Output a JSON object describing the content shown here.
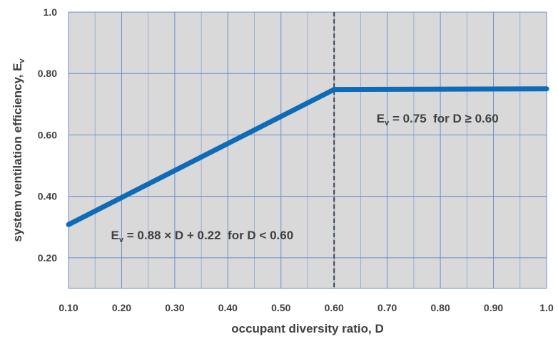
{
  "chart_data": {
    "type": "line",
    "xlabel": "occupant diversity ratio, D",
    "ylabel_main": "system ventilation efficiency, E",
    "ylabel_sub": "v",
    "xlim": [
      0.1,
      1.0
    ],
    "ylim": [
      0.1,
      1.0
    ],
    "x_ticks": [
      0.1,
      0.2,
      0.3,
      0.4,
      0.5,
      0.6,
      0.7,
      0.8,
      0.9,
      1.0
    ],
    "x_tick_labels": [
      "0.10",
      "0.20",
      "0.30",
      "0.40",
      "0.50",
      "0.60",
      "0.70",
      "0.80",
      "0.90",
      "1.0"
    ],
    "y_ticks": [
      0.2,
      0.4,
      0.6,
      0.8,
      1.0
    ],
    "y_tick_labels": [
      "0.20",
      "0.40",
      "0.60",
      "0.80",
      "1.0"
    ],
    "grid": true,
    "series": [
      {
        "x": [
          0.1,
          0.6,
          1.0
        ],
        "y": [
          0.308,
          0.748,
          0.75
        ],
        "color": "#0e6bb8"
      }
    ],
    "vline": {
      "x": 0.6,
      "style": "dashed",
      "color": "#404040"
    },
    "annotations": [
      {
        "prefix": "E",
        "sub": "v",
        "rest": " = 0.88 × D + 0.22  for D < 0.60",
        "at": {
          "x": 0.18,
          "y": 0.26
        }
      },
      {
        "prefix": "E",
        "sub": "v",
        "rest": " = 0.75  for D ≥ 0.60",
        "at": {
          "x": 0.68,
          "y": 0.64
        }
      }
    ]
  },
  "colors": {
    "plot_bg": "#d9d9d9",
    "grid": "#6a8fd0",
    "line": "#0e6bb8",
    "text": "#404040"
  }
}
